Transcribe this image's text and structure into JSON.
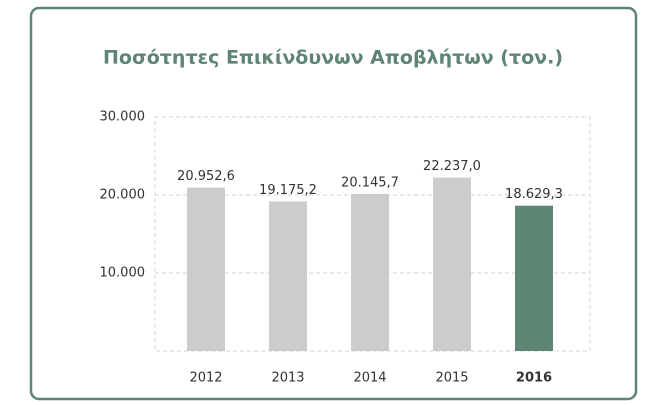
{
  "chart_data": {
    "type": "bar",
    "title": "Ποσότητες Επικίνδυνων Αποβλήτων (τον.)",
    "categories": [
      "2012",
      "2013",
      "2014",
      "2015",
      "2016"
    ],
    "values": [
      20952.6,
      19175.2,
      20145.7,
      22237.0,
      18629.3
    ],
    "value_labels": [
      "20.952,6",
      "19.175,2",
      "20.145,7",
      "22.237,0",
      "18.629,3"
    ],
    "colors": [
      "#cccccc",
      "#cccccc",
      "#cccccc",
      "#cccccc",
      "#5e8474"
    ],
    "ylim": [
      0,
      30000
    ],
    "yticks": [
      {
        "value": 10000,
        "label": "10.000"
      },
      {
        "value": 20000,
        "label": "20.000"
      },
      {
        "value": 30000,
        "label": "30.000"
      }
    ],
    "grid": true
  }
}
